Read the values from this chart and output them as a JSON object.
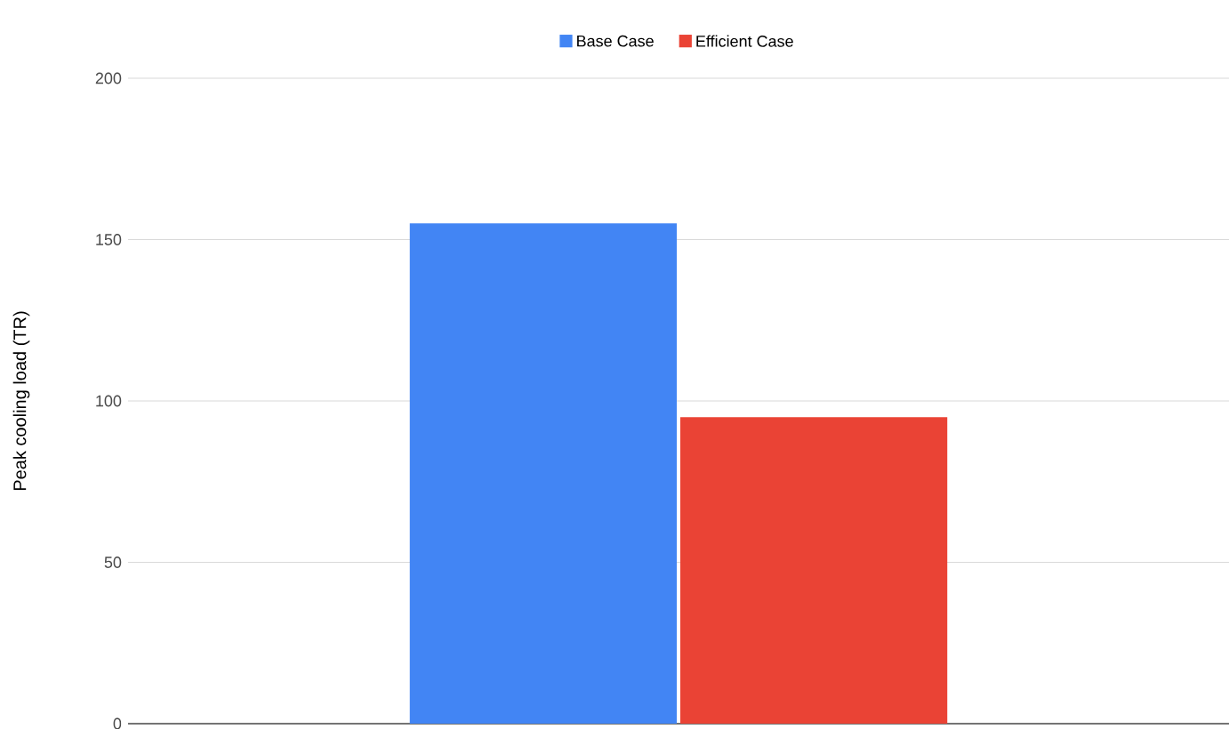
{
  "chart_data": {
    "type": "bar",
    "ylabel": "Peak cooling load (TR)",
    "categories": [
      null
    ],
    "series": [
      {
        "name": "Base Case",
        "color": "#4285f4",
        "values": [
          155
        ]
      },
      {
        "name": "Efficient Case",
        "color": "#ea4335",
        "values": [
          95
        ]
      }
    ],
    "ylim": [
      0,
      200
    ],
    "yticks": [
      0,
      50,
      100,
      150,
      200
    ],
    "grid": "y",
    "legend": "top"
  }
}
